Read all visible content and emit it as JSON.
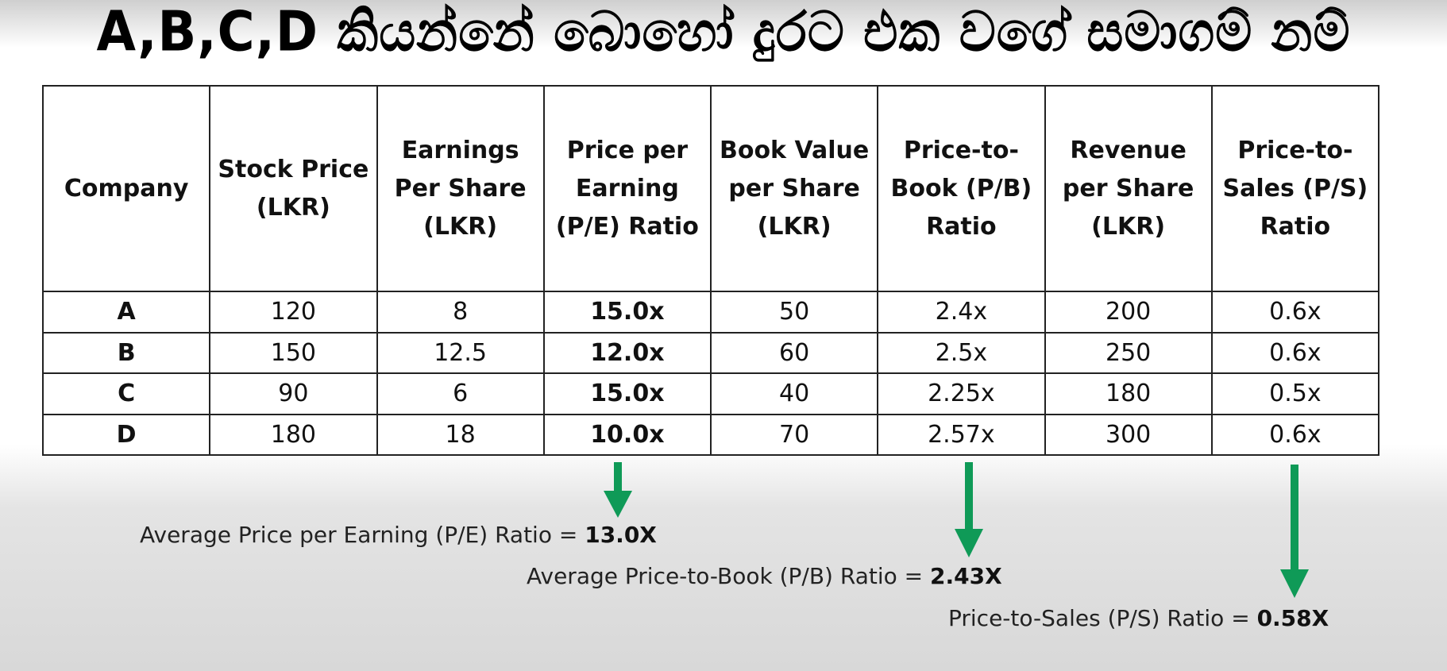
{
  "title": "A,B,C,D කියන්නේ බොහෝ දුරට එක වගේ සමාගම් නම්",
  "table": {
    "headers": [
      "Company",
      "Stock Price (LKR)",
      "Earnings Per Share (LKR)",
      "Price per Earning (P/E) Ratio",
      "Book Value per Share (LKR)",
      "Price-to-Book (P/B) Ratio",
      "Revenue per Share (LKR)",
      "Price-to-Sales (P/S) Ratio"
    ],
    "rows": [
      [
        "A",
        "120",
        "8",
        "15.0x",
        "50",
        "2.4x",
        "200",
        "0.6x"
      ],
      [
        "B",
        "150",
        "12.5",
        "12.0x",
        "60",
        "2.5x",
        "250",
        "0.6x"
      ],
      [
        "C",
        "90",
        "6",
        "15.0x",
        "40",
        "2.25x",
        "180",
        "0.5x"
      ],
      [
        "D",
        "180",
        "18",
        "10.0x",
        "70",
        "2.57x",
        "300",
        "0.6x"
      ]
    ]
  },
  "summaries": {
    "pe": {
      "label": "Average Price per Earning (P/E) Ratio = ",
      "value": "13.0X"
    },
    "pb": {
      "label": "Average Price-to-Book (P/B) Ratio = ",
      "value": "2.43X"
    },
    "ps": {
      "label": "Price-to-Sales (P/S) Ratio = ",
      "value": "0.58X"
    }
  },
  "colors": {
    "arrow": "#0f9a57",
    "border": "#222222"
  }
}
